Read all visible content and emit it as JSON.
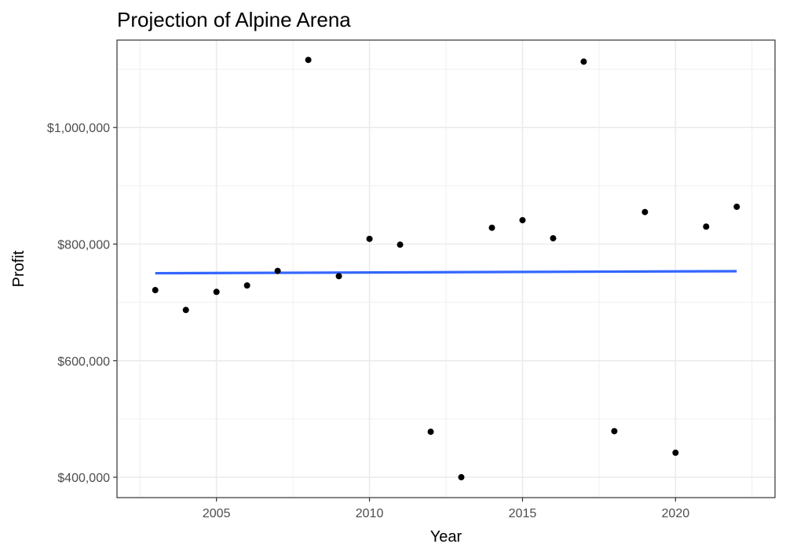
{
  "chart_data": {
    "type": "scatter",
    "title": "Projection of Alpine Arena",
    "xlabel": "Year",
    "ylabel": "Profit",
    "xlim": [
      2001.75,
      2023.25
    ],
    "ylim": [
      365000,
      1150000
    ],
    "x_ticks": [
      2005,
      2010,
      2015,
      2020
    ],
    "x_tick_labels": [
      "2005",
      "2010",
      "2015",
      "2020"
    ],
    "y_ticks": [
      400000,
      600000,
      800000,
      1000000
    ],
    "y_tick_labels": [
      "$400,000",
      "$600,000",
      "$800,000",
      "$1,000,000"
    ],
    "grid": true,
    "points": [
      {
        "x": 2003,
        "y": 721000
      },
      {
        "x": 2004,
        "y": 687000
      },
      {
        "x": 2005,
        "y": 718000
      },
      {
        "x": 2006,
        "y": 729000
      },
      {
        "x": 2007,
        "y": 754000
      },
      {
        "x": 2008,
        "y": 1116000
      },
      {
        "x": 2009,
        "y": 745000
      },
      {
        "x": 2010,
        "y": 809000
      },
      {
        "x": 2011,
        "y": 799000
      },
      {
        "x": 2012,
        "y": 478000
      },
      {
        "x": 2013,
        "y": 400000
      },
      {
        "x": 2014,
        "y": 828000
      },
      {
        "x": 2015,
        "y": 841000
      },
      {
        "x": 2016,
        "y": 810000
      },
      {
        "x": 2017,
        "y": 1113000
      },
      {
        "x": 2018,
        "y": 479000
      },
      {
        "x": 2019,
        "y": 855000
      },
      {
        "x": 2020,
        "y": 442000
      },
      {
        "x": 2021,
        "y": 830000
      },
      {
        "x": 2022,
        "y": 864000
      }
    ],
    "trend_line": {
      "x": [
        2003,
        2022
      ],
      "y": [
        750000,
        753500
      ]
    },
    "colors": {
      "points": "#000000",
      "trend": "#3366ff",
      "grid": "#ebebeb",
      "panel_border": "#333333"
    }
  }
}
